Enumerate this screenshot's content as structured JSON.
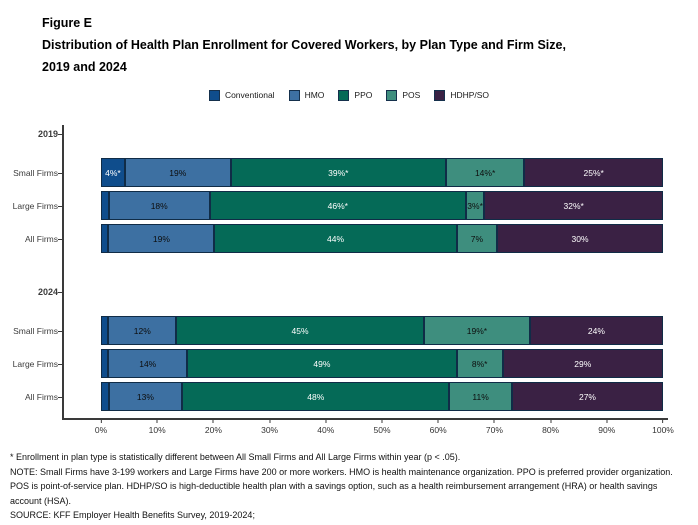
{
  "title": {
    "figure_label": "Figure E",
    "line1": "Distribution of Health Plan Enrollment for Covered Workers, by Plan Type and Firm Size,",
    "line2": "2019 and 2024"
  },
  "legend": [
    {
      "label": "Conventional",
      "color": "#0f4d8c"
    },
    {
      "label": "HMO",
      "color": "#3d70a2"
    },
    {
      "label": "PPO",
      "color": "#056a57"
    },
    {
      "label": "POS",
      "color": "#3e8e7e"
    },
    {
      "label": "HDHP/SO",
      "color": "#3a2144"
    }
  ],
  "chart_data": {
    "type": "bar",
    "orientation": "horizontal-stacked",
    "title": "Distribution of Health Plan Enrollment for Covered Workers, by Plan Type and Firm Size, 2019 and 2024",
    "series_names": [
      "Conventional",
      "HMO",
      "PPO",
      "POS",
      "HDHP/SO"
    ],
    "series_colors": [
      "#0f4d8c",
      "#3d70a2",
      "#056a57",
      "#3e8e7e",
      "#3a2144"
    ],
    "label_text_colors": [
      "#ffffff",
      "#0d0d0d",
      "#ffffff",
      "#0d0d0d",
      "#ffffff"
    ],
    "xlim": [
      0,
      100
    ],
    "groups": [
      {
        "year": "2019",
        "rows": [
          {
            "category": "Small Firms",
            "values": [
              4,
              19,
              39,
              14,
              25
            ],
            "labels": [
              "4%*",
              "19%",
              "39%*",
              "14%*",
              "25%*"
            ]
          },
          {
            "category": "Large Firms",
            "values": [
              1,
              18,
              46,
              3,
              32
            ],
            "labels": [
              "",
              "18%",
              "46%*",
              "3%*",
              "32%*"
            ]
          },
          {
            "category": "All Firms",
            "values": [
              1,
              19,
              44,
              7,
              30
            ],
            "labels": [
              "",
              "19%",
              "44%",
              "7%",
              "30%"
            ]
          }
        ]
      },
      {
        "year": "2024",
        "rows": [
          {
            "category": "Small Firms",
            "values": [
              1,
              12,
              45,
              19,
              24
            ],
            "labels": [
              "",
              "12%",
              "45%",
              "19%*",
              "24%"
            ]
          },
          {
            "category": "Large Firms",
            "values": [
              1,
              14,
              49,
              8,
              29
            ],
            "labels": [
              "",
              "14%",
              "49%",
              "8%*",
              "29%"
            ]
          },
          {
            "category": "All Firms",
            "values": [
              1,
              13,
              48,
              11,
              27
            ],
            "labels": [
              "",
              "13%",
              "48%",
              "11%",
              "27%"
            ]
          }
        ]
      }
    ],
    "x_axis": {
      "ticks": [
        "0%",
        "10%",
        "20%",
        "30%",
        "40%",
        "50%",
        "60%",
        "70%",
        "80%",
        "90%",
        "100%"
      ]
    }
  },
  "footnotes": {
    "asterisk": "* Enrollment in plan type is statistically different between All Small Firms and All Large Firms within year (p < .05).",
    "note": "NOTE: Small Firms have 3-199 workers and Large Firms have 200 or more workers. HMO is health maintenance organization. PPO is preferred provider organization. POS is point-of-service plan. HDHP/SO is high-deductible health plan with a savings option, such as a health reimbursement arrangement (HRA) or health savings account (HSA).",
    "source": "SOURCE: KFF Employer Health Benefits Survey, 2019-2024;"
  }
}
